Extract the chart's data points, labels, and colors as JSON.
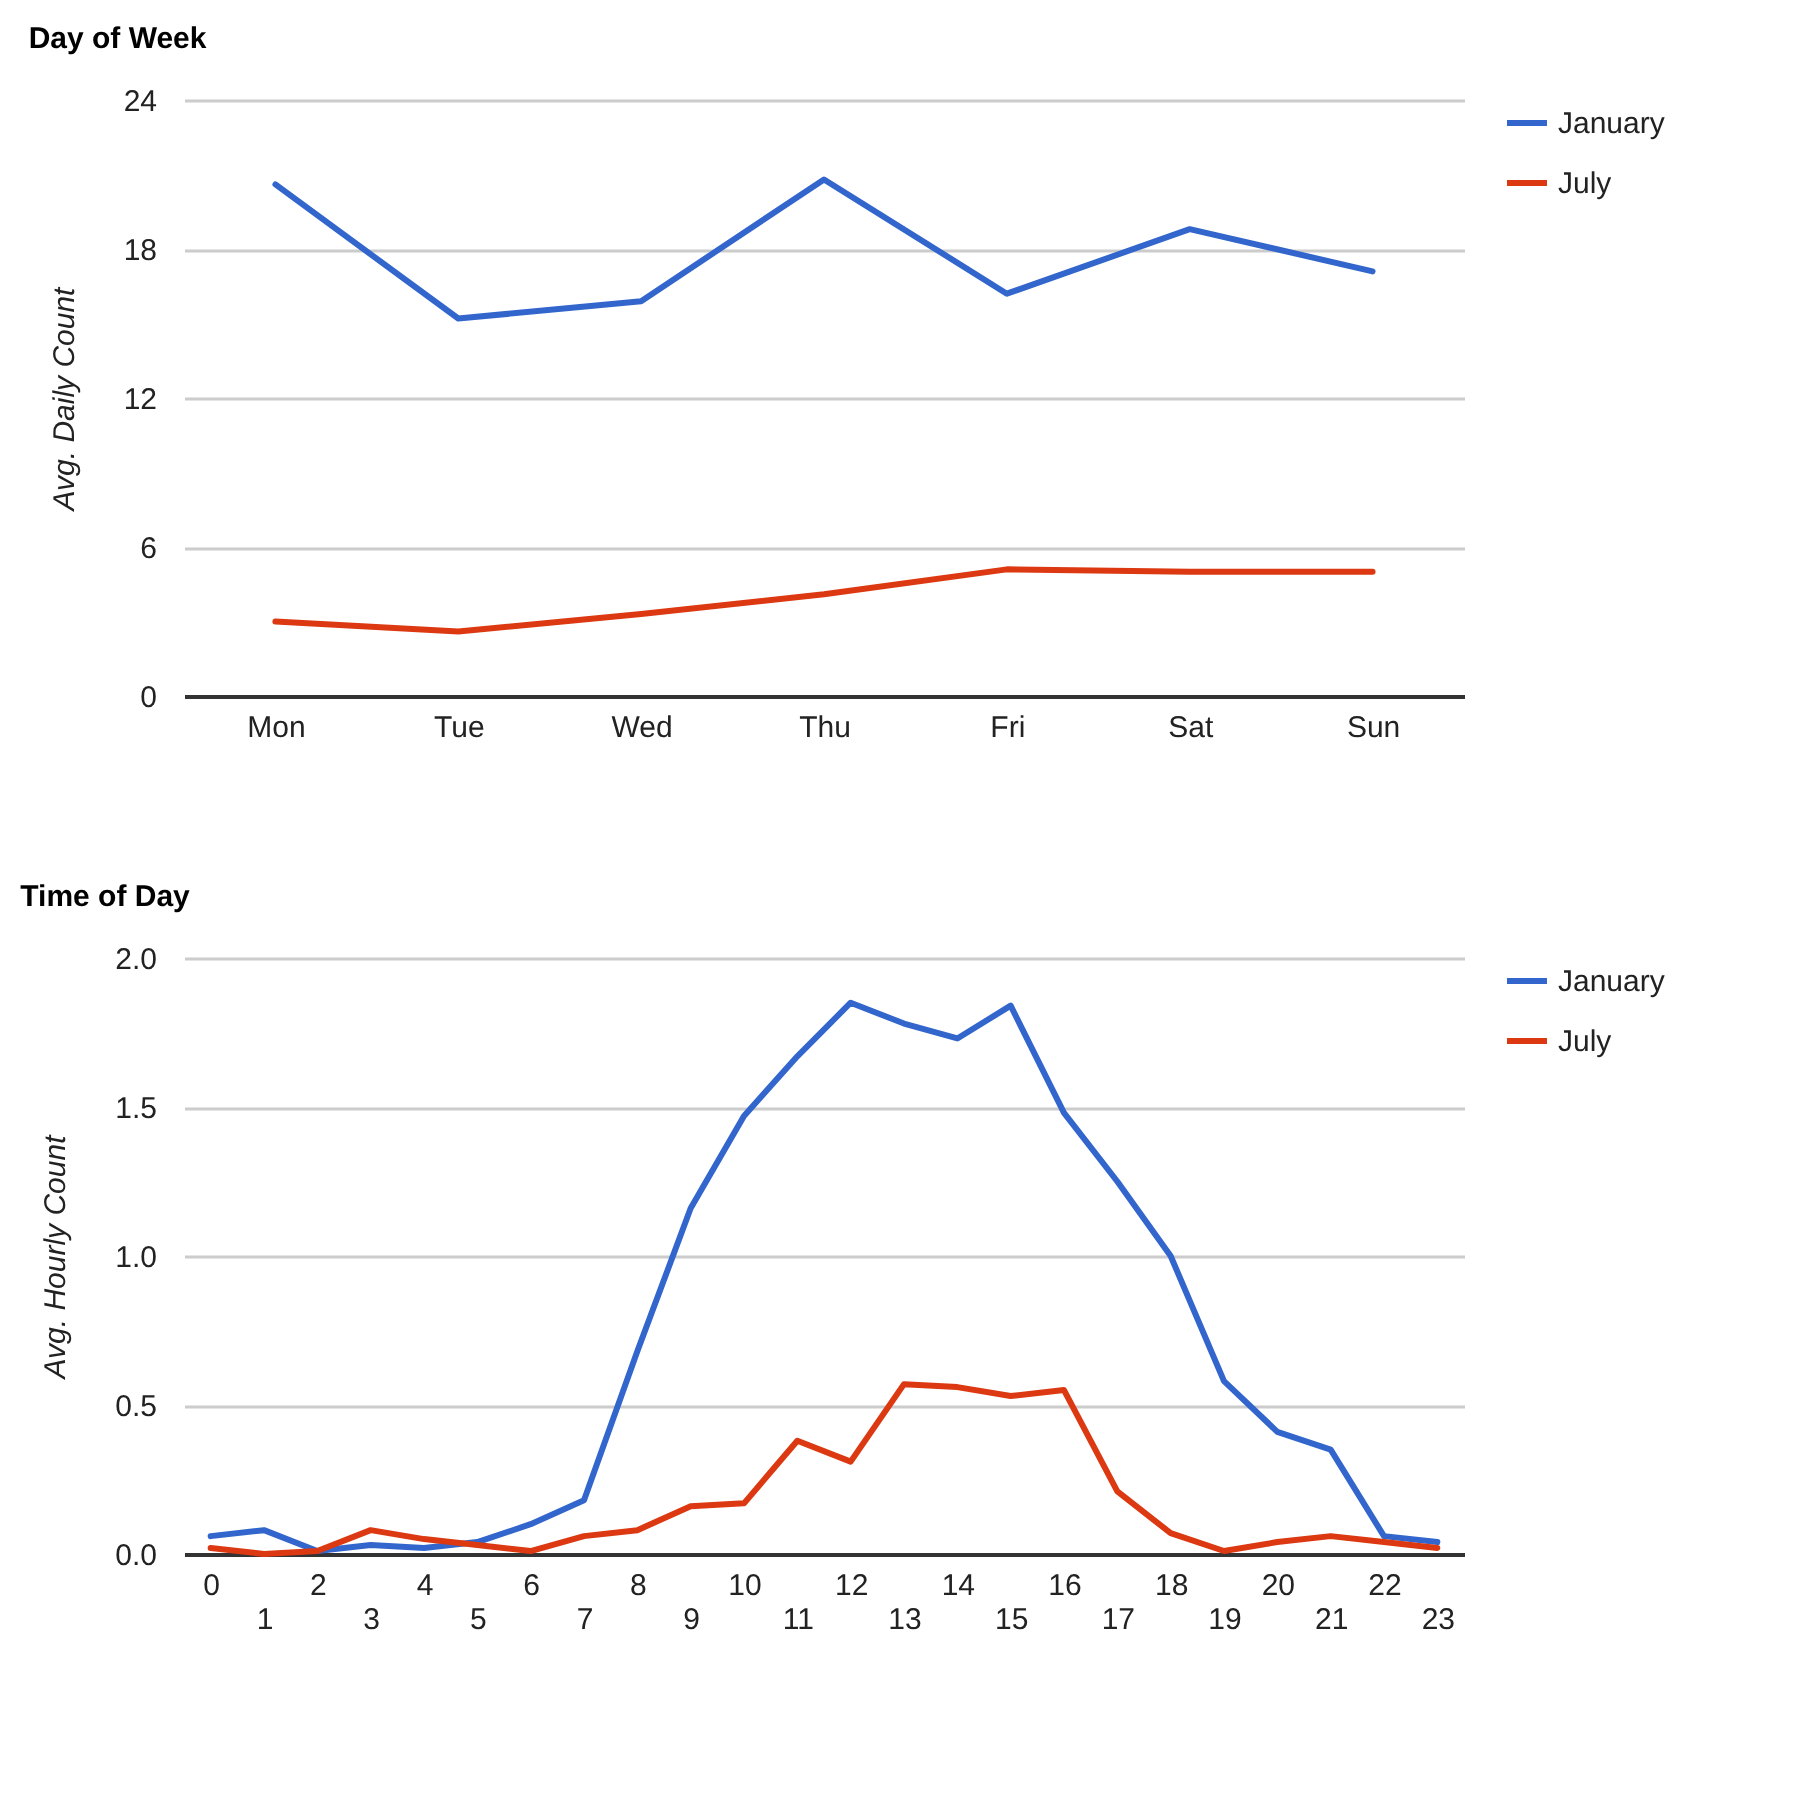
{
  "chart_data": [
    {
      "type": "line",
      "title": "Day of Week",
      "ylabel": "Avg. Daily Count",
      "categories": [
        "Mon",
        "Tue",
        "Wed",
        "Thu",
        "Fri",
        "Sat",
        "Sun"
      ],
      "series": [
        {
          "name": "January",
          "color": "#3366cc",
          "values": [
            20.6,
            15.2,
            15.9,
            20.8,
            16.2,
            18.8,
            17.1
          ]
        },
        {
          "name": "July",
          "color": "#dc3912",
          "values": [
            3.0,
            2.6,
            3.3,
            4.1,
            5.1,
            5.0,
            5.0
          ]
        }
      ],
      "ylim": [
        0,
        24
      ],
      "yticks": [
        0,
        6,
        12,
        18,
        24
      ],
      "grid": "y",
      "legend": "right"
    },
    {
      "type": "line",
      "title": "Time of Day",
      "ylabel": "Avg. Hourly Count",
      "categories": [
        "0",
        "1",
        "2",
        "3",
        "4",
        "5",
        "6",
        "7",
        "8",
        "9",
        "10",
        "11",
        "12",
        "13",
        "14",
        "15",
        "16",
        "17",
        "18",
        "19",
        "20",
        "21",
        "22",
        "23"
      ],
      "series": [
        {
          "name": "January",
          "color": "#3366cc",
          "values": [
            0.06,
            0.08,
            0.01,
            0.03,
            0.02,
            0.04,
            0.1,
            0.18,
            0.68,
            1.16,
            1.47,
            1.67,
            1.85,
            1.78,
            1.73,
            1.84,
            1.48,
            1.25,
            1.0,
            0.58,
            0.41,
            0.35,
            0.06,
            0.04
          ]
        },
        {
          "name": "July",
          "color": "#dc3912",
          "values": [
            0.02,
            0.0,
            0.01,
            0.08,
            0.05,
            0.03,
            0.01,
            0.06,
            0.08,
            0.16,
            0.17,
            0.38,
            0.31,
            0.57,
            0.56,
            0.53,
            0.55,
            0.21,
            0.07,
            0.01,
            0.04,
            0.06,
            0.04,
            0.02
          ]
        }
      ],
      "ylim": [
        0,
        2.0
      ],
      "yticks": [
        {
          "value": 0,
          "label": "0.0"
        },
        {
          "value": 0.5,
          "label": "0.5"
        },
        {
          "value": 1,
          "label": "1.0"
        },
        {
          "value": 1.5,
          "label": "1.5"
        },
        {
          "value": 2,
          "label": "2.0"
        }
      ],
      "grid": "y",
      "legend": "right"
    }
  ]
}
